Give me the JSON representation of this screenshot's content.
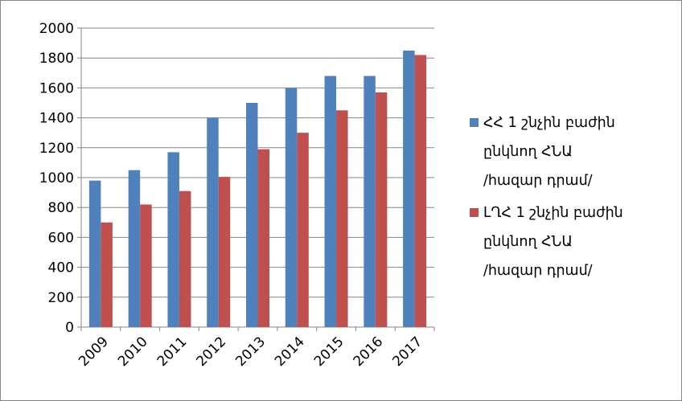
{
  "chart_data": {
    "type": "bar",
    "categories": [
      "2009",
      "2010",
      "2011",
      "2012",
      "2013",
      "2014",
      "2015",
      "2016",
      "2017"
    ],
    "series": [
      {
        "name": "ՀՀ 1 շնչին բաժին ընկնող ՀՆԱ /հազար դրամ/",
        "color": "#4F81BD",
        "values": [
          980,
          1050,
          1170,
          1400,
          1500,
          1600,
          1680,
          1680,
          1850
        ]
      },
      {
        "name": "ԼՂՀ 1 շնչին բաժին ընկնող ՀՆԱ /հազար դրամ/",
        "color": "#C0504D",
        "values": [
          700,
          820,
          910,
          1005,
          1190,
          1300,
          1450,
          1570,
          1820
        ]
      }
    ],
    "title": "",
    "xlabel": "",
    "ylabel": "",
    "ylim": [
      0,
      2000
    ],
    "yticks": [
      0,
      200,
      400,
      600,
      800,
      1000,
      1200,
      1400,
      1600,
      1800,
      2000
    ],
    "grid": true,
    "legend_position": "right"
  },
  "legend": {
    "items": [
      {
        "lines": [
          "ՀՀ 1 շնչին բաժին",
          "ընկնող ՀՆԱ",
          "/հազար դրամ/"
        ]
      },
      {
        "lines": [
          "ԼՂՀ 1 շնչին բաժին",
          "ընկնող ՀՆԱ",
          "/հազար դրամ/"
        ]
      }
    ]
  }
}
